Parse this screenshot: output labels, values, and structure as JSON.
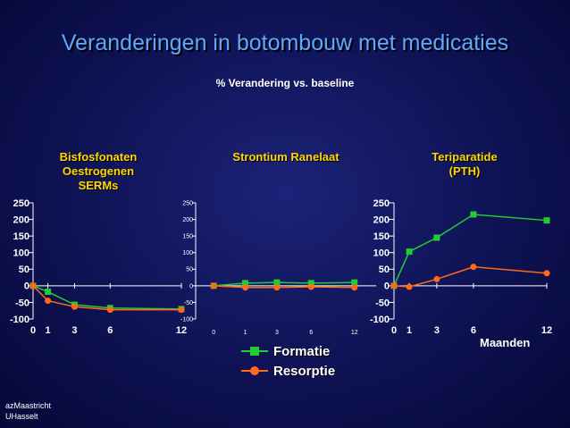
{
  "title": "Veranderingen in botombouw met medicaties",
  "subtitle": "% Verandering vs. baseline",
  "x_unit_label": "Maanden",
  "footer": [
    "azMaastricht",
    "UHasselt"
  ],
  "colors": {
    "formatie": "#22cc33",
    "resorptie": "#ff6a1a",
    "title": "#5ea8ff",
    "panel_label": "#ffd800"
  },
  "chart_data": [
    {
      "type": "line",
      "title_lines": [
        "Bisfosfonaten",
        "Oestrogenen",
        "SERMs"
      ],
      "x_ticks": [
        "0",
        "1",
        "3",
        "6",
        "12"
      ],
      "ylim": [
        -100,
        250
      ],
      "y_ticks": [
        "250",
        "200",
        "150",
        "100",
        "50",
        "0",
        "-50",
        "-100"
      ],
      "series": [
        {
          "name": "Formatie",
          "x": [
            0,
            1,
            3,
            6,
            12
          ],
          "y": [
            0,
            -18,
            -57,
            -67,
            -70
          ]
        },
        {
          "name": "Resorptie",
          "x": [
            0,
            1,
            3,
            6,
            12
          ],
          "y": [
            0,
            -45,
            -63,
            -72,
            -72
          ]
        }
      ]
    },
    {
      "type": "line",
      "title_lines": [
        "Strontium Ranelaat"
      ],
      "x_ticks": [
        "0",
        "1",
        "3",
        "6",
        "12"
      ],
      "ylim": [
        -100,
        250
      ],
      "y_ticks": [
        "250",
        "200",
        "150",
        "100",
        "50",
        "0",
        "-50",
        "-100"
      ],
      "series": [
        {
          "name": "Formatie",
          "x": [
            0,
            1,
            3,
            6,
            12
          ],
          "y": [
            0,
            8,
            10,
            8,
            10
          ]
        },
        {
          "name": "Resorptie",
          "x": [
            0,
            1,
            3,
            6,
            12
          ],
          "y": [
            0,
            -5,
            -5,
            -3,
            -5
          ]
        }
      ]
    },
    {
      "type": "line",
      "title_lines": [
        "Teriparatide",
        "(PTH)"
      ],
      "x_ticks": [
        "0",
        "1",
        "3",
        "6",
        "12"
      ],
      "ylim": [
        -100,
        250
      ],
      "y_ticks": [
        "250",
        "200",
        "150",
        "100",
        "50",
        "0",
        "-50",
        "-100"
      ],
      "series": [
        {
          "name": "Formatie",
          "x": [
            0,
            1,
            3,
            6,
            12
          ],
          "y": [
            0,
            103,
            145,
            215,
            197
          ]
        },
        {
          "name": "Resorptie",
          "x": [
            0,
            1,
            3,
            6,
            12
          ],
          "y": [
            0,
            -3,
            20,
            57,
            38
          ]
        }
      ]
    }
  ],
  "legend": [
    {
      "label": "Formatie"
    },
    {
      "label": "Resorptie"
    }
  ]
}
